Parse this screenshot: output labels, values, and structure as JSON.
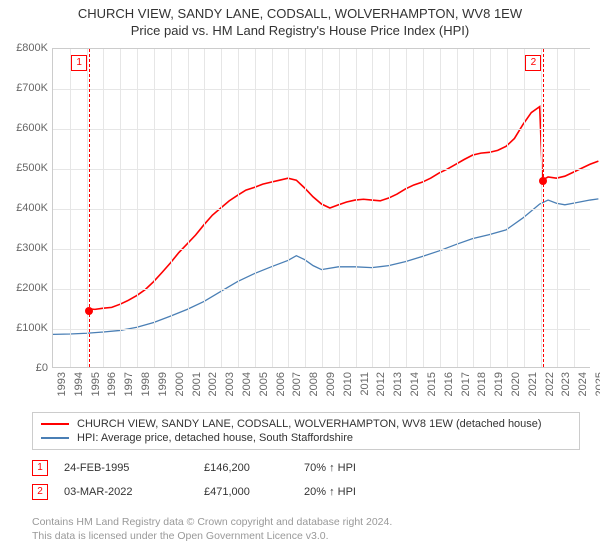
{
  "title": {
    "line1": "CHURCH VIEW, SANDY LANE, CODSALL, WOLVERHAMPTON, WV8 1EW",
    "line2": "Price paid vs. HM Land Registry's House Price Index (HPI)"
  },
  "chart": {
    "type": "line",
    "background_color": "#ffffff",
    "grid_color": "#e6e6e6",
    "axis_color": "#cccccc",
    "text_color": "#666666",
    "y": {
      "min": 0,
      "max": 800000,
      "step": 100000,
      "format_prefix": "£",
      "format_suffix": "K",
      "divisor": 1000
    },
    "x": {
      "min": 1993,
      "max": 2025,
      "step": 1
    },
    "series": [
      {
        "id": "property",
        "label": "CHURCH VIEW, SANDY LANE, CODSALL, WOLVERHAMPTON, WV8 1EW (detached house)",
        "color": "#ff0000",
        "width": 1.6,
        "points": [
          [
            1995.15,
            146200
          ],
          [
            1995.5,
            145000
          ],
          [
            1996,
            148000
          ],
          [
            1996.5,
            150000
          ],
          [
            1997,
            158000
          ],
          [
            1997.5,
            168000
          ],
          [
            1998,
            180000
          ],
          [
            1998.5,
            195000
          ],
          [
            1999,
            215000
          ],
          [
            1999.5,
            238000
          ],
          [
            2000,
            262000
          ],
          [
            2000.5,
            288000
          ],
          [
            2001,
            310000
          ],
          [
            2001.5,
            332000
          ],
          [
            2002,
            358000
          ],
          [
            2002.5,
            382000
          ],
          [
            2003,
            400000
          ],
          [
            2003.5,
            418000
          ],
          [
            2004,
            432000
          ],
          [
            2004.5,
            445000
          ],
          [
            2005,
            452000
          ],
          [
            2005.5,
            460000
          ],
          [
            2006,
            465000
          ],
          [
            2006.5,
            470000
          ],
          [
            2007,
            475000
          ],
          [
            2007.5,
            470000
          ],
          [
            2008,
            450000
          ],
          [
            2008.5,
            428000
          ],
          [
            2009,
            410000
          ],
          [
            2009.5,
            400000
          ],
          [
            2010,
            408000
          ],
          [
            2010.5,
            415000
          ],
          [
            2011,
            420000
          ],
          [
            2011.5,
            422000
          ],
          [
            2012,
            420000
          ],
          [
            2012.5,
            418000
          ],
          [
            2013,
            425000
          ],
          [
            2013.5,
            435000
          ],
          [
            2014,
            448000
          ],
          [
            2014.5,
            458000
          ],
          [
            2015,
            465000
          ],
          [
            2015.5,
            475000
          ],
          [
            2016,
            488000
          ],
          [
            2016.5,
            498000
          ],
          [
            2017,
            510000
          ],
          [
            2017.5,
            522000
          ],
          [
            2018,
            533000
          ],
          [
            2018.5,
            538000
          ],
          [
            2019,
            540000
          ],
          [
            2019.5,
            545000
          ],
          [
            2020,
            555000
          ],
          [
            2020.5,
            575000
          ],
          [
            2021,
            610000
          ],
          [
            2021.5,
            640000
          ],
          [
            2022,
            655000
          ],
          [
            2022.17,
            471000
          ],
          [
            2022.5,
            478000
          ],
          [
            2023,
            475000
          ],
          [
            2023.5,
            480000
          ],
          [
            2024,
            490000
          ],
          [
            2024.5,
            500000
          ],
          [
            2025,
            510000
          ],
          [
            2025.5,
            518000
          ]
        ]
      },
      {
        "id": "hpi",
        "label": "HPI: Average price, detached house, South Staffordshire",
        "color": "#4a7fb5",
        "width": 1.3,
        "points": [
          [
            1993,
            82000
          ],
          [
            1994,
            83000
          ],
          [
            1995,
            85000
          ],
          [
            1996,
            88000
          ],
          [
            1997,
            92000
          ],
          [
            1998,
            100000
          ],
          [
            1999,
            112000
          ],
          [
            2000,
            128000
          ],
          [
            2001,
            145000
          ],
          [
            2002,
            165000
          ],
          [
            2003,
            190000
          ],
          [
            2004,
            215000
          ],
          [
            2005,
            235000
          ],
          [
            2006,
            252000
          ],
          [
            2007,
            268000
          ],
          [
            2007.5,
            280000
          ],
          [
            2008,
            270000
          ],
          [
            2008.5,
            255000
          ],
          [
            2009,
            245000
          ],
          [
            2010,
            252000
          ],
          [
            2011,
            252000
          ],
          [
            2012,
            250000
          ],
          [
            2013,
            255000
          ],
          [
            2014,
            265000
          ],
          [
            2015,
            278000
          ],
          [
            2016,
            292000
          ],
          [
            2017,
            308000
          ],
          [
            2018,
            323000
          ],
          [
            2019,
            333000
          ],
          [
            2020,
            345000
          ],
          [
            2021,
            375000
          ],
          [
            2022,
            410000
          ],
          [
            2022.5,
            420000
          ],
          [
            2023,
            412000
          ],
          [
            2023.5,
            408000
          ],
          [
            2024,
            412000
          ],
          [
            2024.5,
            416000
          ],
          [
            2025,
            420000
          ],
          [
            2025.5,
            423000
          ]
        ]
      }
    ],
    "markers": [
      {
        "num": "1",
        "year": 1995.15,
        "date": "24-FEB-1995",
        "price": "£146,200",
        "delta": "70% ↑ HPI",
        "y_value": 146200
      },
      {
        "num": "2",
        "year": 2022.17,
        "date": "03-MAR-2022",
        "price": "£471,000",
        "delta": "20% ↑ HPI",
        "y_value": 471000
      }
    ]
  },
  "legend_heading": {
    "col_date": "",
    "col_price": "",
    "col_delta": ""
  },
  "footer": {
    "line1": "Contains HM Land Registry data © Crown copyright and database right 2024.",
    "line2": "This data is licensed under the Open Government Licence v3.0."
  }
}
